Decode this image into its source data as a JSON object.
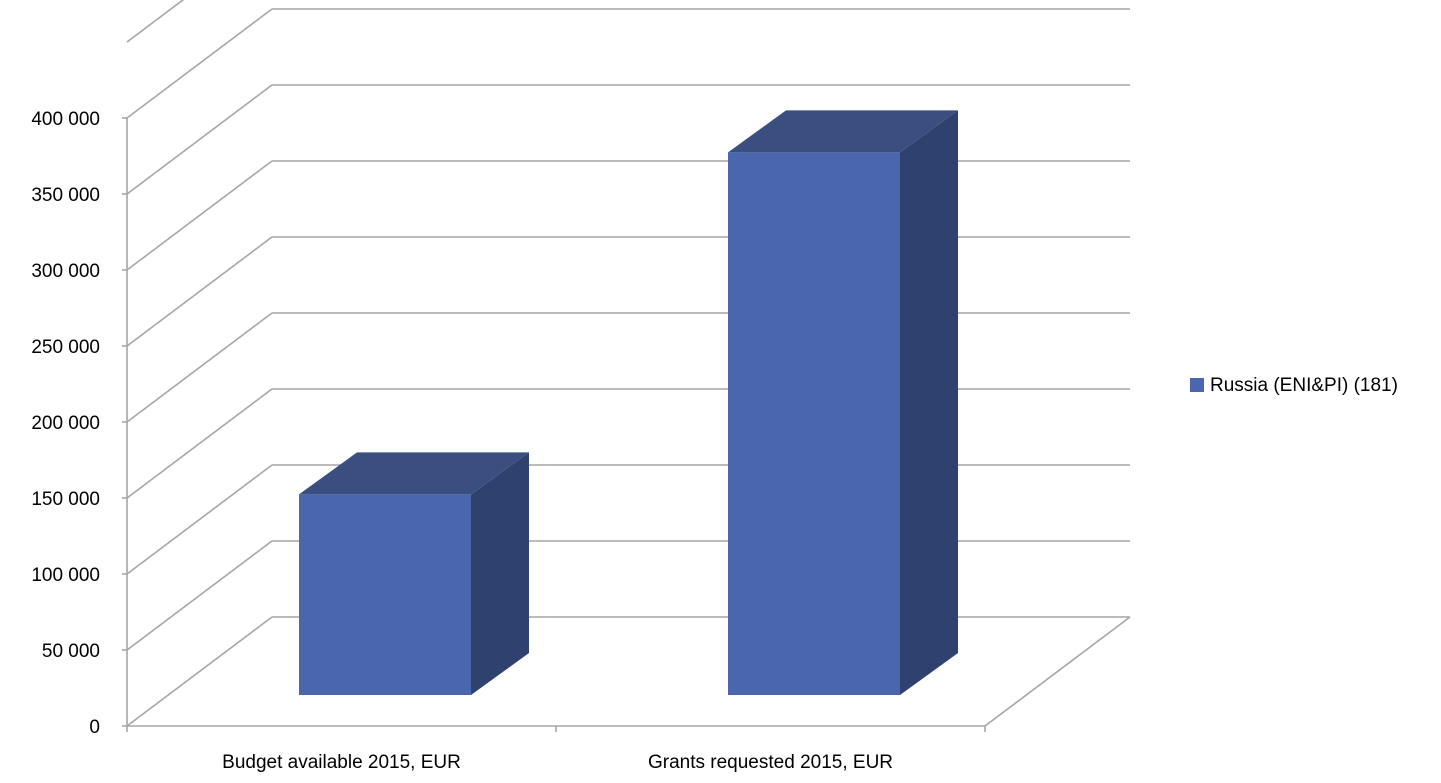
{
  "chart_data": {
    "type": "bar",
    "style": "3d-column",
    "categories": [
      "Budget available 2015, EUR",
      "Grants requested 2015, EUR"
    ],
    "series": [
      {
        "name": "Russia (ENI&PI) (181)",
        "values": [
          132000,
          357000
        ],
        "color": "#4A66AC"
      }
    ],
    "ylim": [
      0,
      450000
    ],
    "yticks": [
      0,
      50000,
      100000,
      150000,
      200000,
      250000,
      300000,
      350000,
      400000
    ],
    "ytick_labels": [
      "0",
      "50 000",
      "100 000",
      "150 000",
      "200 000",
      "250 000",
      "300 000",
      "350 000",
      "400 000"
    ],
    "grid": true,
    "legend_position": "right",
    "colors": {
      "bar_front": "#4A66AC",
      "bar_top": "#3A4F80",
      "bar_side": "#2F416F",
      "grid": "#A6A6A6"
    }
  }
}
